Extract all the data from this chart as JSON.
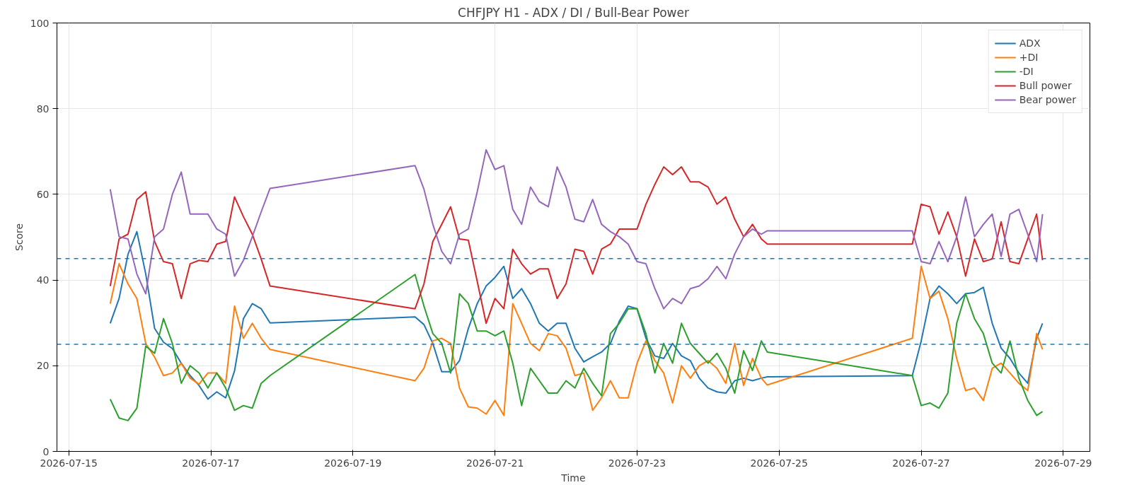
{
  "chart_data": {
    "type": "line",
    "title": "CHFJPY H1 - ADX / DI / Bull-Bear Power",
    "xlabel": "Time",
    "ylabel": "Score",
    "x": [
      "2026-07-15T14:00",
      "2026-07-15T17:00",
      "2026-07-15T20:00",
      "2026-07-15T23:00",
      "2026-07-16T02:00",
      "2026-07-16T05:00",
      "2026-07-16T08:00",
      "2026-07-16T11:00",
      "2026-07-16T14:00",
      "2026-07-16T17:00",
      "2026-07-16T20:00",
      "2026-07-16T23:00",
      "2026-07-17T02:00",
      "2026-07-17T05:00",
      "2026-07-17T08:00",
      "2026-07-17T11:00",
      "2026-07-17T14:00",
      "2026-07-17T17:00",
      "2026-07-17T20:00",
      "2026-07-19T21:00",
      "2026-07-20T00:00",
      "2026-07-20T03:00",
      "2026-07-20T06:00",
      "2026-07-20T09:00",
      "2026-07-20T12:00",
      "2026-07-20T15:00",
      "2026-07-20T18:00",
      "2026-07-20T21:00",
      "2026-07-21T00:00",
      "2026-07-21T03:00",
      "2026-07-21T06:00",
      "2026-07-21T09:00",
      "2026-07-21T12:00",
      "2026-07-21T15:00",
      "2026-07-21T18:00",
      "2026-07-21T21:00",
      "2026-07-22T00:00",
      "2026-07-22T03:00",
      "2026-07-22T06:00",
      "2026-07-22T09:00",
      "2026-07-22T12:00",
      "2026-07-22T15:00",
      "2026-07-22T18:00",
      "2026-07-22T21:00",
      "2026-07-23T00:00",
      "2026-07-23T03:00",
      "2026-07-23T06:00",
      "2026-07-23T09:00",
      "2026-07-23T12:00",
      "2026-07-23T15:00",
      "2026-07-23T18:00",
      "2026-07-23T21:00",
      "2026-07-24T00:00",
      "2026-07-24T03:00",
      "2026-07-24T06:00",
      "2026-07-24T09:00",
      "2026-07-24T12:00",
      "2026-07-24T15:00",
      "2026-07-24T18:00",
      "2026-07-24T20:00",
      "2026-07-26T21:00",
      "2026-07-27T00:00",
      "2026-07-27T03:00",
      "2026-07-27T06:00",
      "2026-07-27T09:00",
      "2026-07-27T12:00",
      "2026-07-27T15:00",
      "2026-07-27T18:00",
      "2026-07-27T21:00",
      "2026-07-28T00:00",
      "2026-07-28T03:00",
      "2026-07-28T06:00",
      "2026-07-28T09:00",
      "2026-07-28T12:00",
      "2026-07-28T15:00",
      "2026-07-28T17:00"
    ],
    "series": [
      {
        "name": "ADX",
        "color": "#1f77b4",
        "values": [
          29.9,
          35.7,
          46,
          51.3,
          41.4,
          28.7,
          25.5,
          24,
          20.6,
          17.7,
          15.4,
          12.2,
          13.9,
          12.5,
          18.8,
          31,
          34.5,
          33.3,
          30,
          31.4,
          29.6,
          25.2,
          18.6,
          18.6,
          21.2,
          28.7,
          34.5,
          38.6,
          40.6,
          43.2,
          35.7,
          38,
          34.5,
          29.9,
          28.1,
          29.9,
          29.9,
          24.1,
          20.9,
          22.1,
          23.2,
          25.2,
          30.4,
          33.9,
          33.3,
          26.4,
          22.3,
          21.7,
          25.2,
          22.3,
          21.2,
          17.1,
          14.8,
          13.9,
          13.6,
          16.5,
          17.1,
          16.5,
          17.1,
          17.4,
          17.7,
          25.8,
          35.7,
          38.6,
          36.8,
          34.5,
          36.8,
          37.1,
          38.3,
          29.9,
          24.1,
          21.7,
          18.3,
          15.9,
          26.4,
          29.9
        ]
      },
      {
        "name": "+DI",
        "color": "#ff7f0e",
        "values": [
          34.5,
          43.8,
          39.1,
          35.7,
          25.2,
          22,
          17.7,
          18.3,
          20.6,
          17.1,
          15.7,
          18.3,
          18.3,
          15.9,
          33.9,
          26.4,
          29.9,
          26.4,
          23.8,
          16.5,
          19.4,
          25.8,
          26.4,
          25.2,
          14.8,
          10.4,
          10.1,
          8.7,
          11.9,
          8.4,
          34.5,
          29.9,
          25.2,
          23.5,
          27.5,
          27,
          24.1,
          17.7,
          18.3,
          9.6,
          12.5,
          16.5,
          12.5,
          12.5,
          20.6,
          25.8,
          21.2,
          18.3,
          11.3,
          20,
          17.1,
          20,
          21.2,
          19.4,
          15.9,
          25.2,
          15.4,
          21.7,
          17.1,
          15.5,
          26.4,
          43.2,
          35.7,
          37.4,
          31,
          21.7,
          14.2,
          14.8,
          11.9,
          19.4,
          20.6,
          18.3,
          15.9,
          14.2,
          27.5,
          23.8
        ]
      },
      {
        "name": "-DI",
        "color": "#2ca02c",
        "values": [
          12.2,
          7.8,
          7.2,
          10.1,
          24.6,
          22.9,
          31,
          25.2,
          15.9,
          20,
          18.3,
          14.8,
          18.3,
          14.8,
          9.6,
          10.7,
          10.1,
          15.9,
          17.7,
          41.3,
          33.9,
          27.5,
          25.2,
          18.3,
          36.8,
          34.5,
          28.1,
          28.1,
          27,
          28.1,
          20.6,
          10.7,
          19.4,
          16.5,
          13.6,
          13.6,
          16.5,
          14.8,
          19.4,
          15.9,
          13,
          27.5,
          29.9,
          33.3,
          33.3,
          27.5,
          18.3,
          25.2,
          20.6,
          29.9,
          25.2,
          22.9,
          20.6,
          22.9,
          19.4,
          13.6,
          23.5,
          18.9,
          25.8,
          23.2,
          17.7,
          10.7,
          11.3,
          10.1,
          13.6,
          29.9,
          36.8,
          31,
          27.5,
          20.6,
          18.3,
          25.8,
          17.1,
          11.9,
          8.4,
          9.3
        ]
      },
      {
        "name": "Bull power",
        "color": "#d62728",
        "values": [
          38.6,
          49.6,
          50.7,
          58.8,
          60.6,
          49,
          44.3,
          43.8,
          35.7,
          43.8,
          44.6,
          44.3,
          48.4,
          49,
          59.4,
          54.8,
          50.7,
          44.9,
          38.6,
          33.3,
          39.1,
          49,
          53,
          57.1,
          49.6,
          49.3,
          39.7,
          29.9,
          35.7,
          33.3,
          47.2,
          43.8,
          41.4,
          42.6,
          42.6,
          35.7,
          39.1,
          47.2,
          46.7,
          41.4,
          47.2,
          48.4,
          51.9,
          51.9,
          51.9,
          57.7,
          62.3,
          66.4,
          64.6,
          66.4,
          62.9,
          62.9,
          61.7,
          57.7,
          59.4,
          54.2,
          50.1,
          53,
          49.6,
          48.4,
          48.4,
          57.7,
          57.1,
          50.7,
          55.9,
          50.1,
          40.9,
          49.6,
          44.3,
          44.9,
          53.6,
          44.3,
          43.8,
          49.6,
          55.4,
          44.6
        ]
      },
      {
        "name": "Bear power",
        "color": "#9467bd",
        "values": [
          61.2,
          50.1,
          49.6,
          41.4,
          36.8,
          50.1,
          51.9,
          60,
          65.2,
          55.4,
          55.4,
          55.4,
          51.9,
          50.7,
          40.9,
          44.6,
          50.1,
          55.9,
          61.4,
          66.7,
          61.2,
          53,
          46.7,
          43.8,
          50.7,
          51.9,
          60.6,
          70.4,
          65.8,
          66.7,
          56.5,
          53,
          61.7,
          58.3,
          57.1,
          66.4,
          61.7,
          54.2,
          53.6,
          58.8,
          53,
          51.3,
          50.1,
          48.4,
          44.3,
          43.8,
          38,
          33.3,
          35.7,
          34.5,
          38,
          38.6,
          40.3,
          43.2,
          40.3,
          46.1,
          50.1,
          51.9,
          50.7,
          51.5,
          51.5,
          44.3,
          43.8,
          49,
          44.3,
          50.1,
          59.4,
          50.1,
          53,
          55.4,
          45.5,
          55.4,
          56.5,
          50.7,
          44.3,
          55.4
        ]
      }
    ],
    "xlim": [
      "2026-07-14T20:00",
      "2026-07-29T09:00"
    ],
    "xticks": [
      "2026-07-15",
      "2026-07-17",
      "2026-07-19",
      "2026-07-21",
      "2026-07-23",
      "2026-07-25",
      "2026-07-27",
      "2026-07-29"
    ],
    "ylim": [
      0,
      100
    ],
    "yticks": [
      0,
      20,
      40,
      60,
      80,
      100
    ],
    "ref_lines": [
      {
        "axis": "y",
        "value": 45,
        "color": "#1f77b4",
        "line_style": "dashed"
      },
      {
        "axis": "y",
        "value": 25,
        "color": "#1f77b4",
        "line_style": "dashed"
      }
    ],
    "grid": true,
    "legend": "top right",
    "line_style": "solid",
    "marker": "none"
  }
}
